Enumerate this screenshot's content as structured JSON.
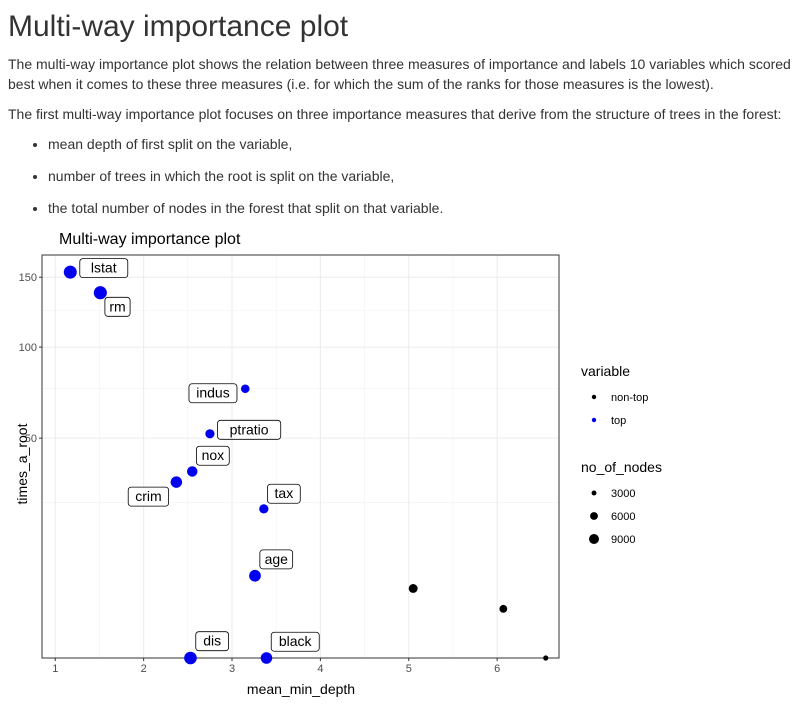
{
  "heading": "Multi-way importance plot",
  "intro": "The multi-way importance plot shows the relation between three measures of importance and labels 10 variables which scored best when it comes to these three measures (i.e. for which the sum of the ranks for those measures is the lowest).",
  "subintro": "The first multi-way importance plot focuses on three importance measures that derive from the structure of trees in the forest:",
  "bullets": [
    "mean depth of first split on the variable,",
    "number of trees in which the root is split on the variable,",
    "the total number of nodes in the forest that split on that variable."
  ],
  "chart_data": {
    "type": "scatter",
    "title": "Multi-way importance plot",
    "xlabel": "mean_min_depth",
    "ylabel": "times_a_root",
    "xlim": [
      0.85,
      6.7
    ],
    "ylim": [
      0,
      168
    ],
    "y_scale": "sqrt",
    "x_ticks": [
      1,
      2,
      3,
      4,
      5,
      6
    ],
    "y_ticks": [
      50,
      100,
      150
    ],
    "grid": true,
    "legend_placement": "right",
    "colors": {
      "top": "#0000ee",
      "non-top": "#000000"
    },
    "legend": {
      "color_title": "variable",
      "color_items": [
        {
          "key": "non-top",
          "label": "non-top",
          "color": "#000000"
        },
        {
          "key": "top",
          "label": "top",
          "color": "#0000ee"
        }
      ],
      "size_title": "no_of_nodes",
      "size_items": [
        {
          "label": "3000",
          "nodes": 3000
        },
        {
          "label": "6000",
          "nodes": 6000
        },
        {
          "label": "9000",
          "nodes": 9000
        }
      ]
    },
    "points": [
      {
        "label": "lstat",
        "x": 1.17,
        "y": 154,
        "nodes": 9000,
        "group": "top",
        "label_pos": "right"
      },
      {
        "label": "rm",
        "x": 1.51,
        "y": 138,
        "nodes": 9200,
        "group": "top",
        "label_pos": "below-right"
      },
      {
        "label": "indus",
        "x": 3.15,
        "y": 75,
        "nodes": 3600,
        "group": "top",
        "label_pos": "left"
      },
      {
        "label": "ptratio",
        "x": 2.75,
        "y": 52,
        "nodes": 4200,
        "group": "top",
        "label_pos": "right"
      },
      {
        "label": "nox",
        "x": 2.55,
        "y": 36,
        "nodes": 5600,
        "group": "top",
        "label_pos": "above-right"
      },
      {
        "label": "crim",
        "x": 2.37,
        "y": 32,
        "nodes": 6800,
        "group": "top",
        "label_pos": "below-left"
      },
      {
        "label": "tax",
        "x": 3.36,
        "y": 23,
        "nodes": 4300,
        "group": "top",
        "label_pos": "above-right"
      },
      {
        "label": "age",
        "x": 3.26,
        "y": 7,
        "nodes": 7200,
        "group": "top",
        "label_pos": "above-right"
      },
      {
        "label": "dis",
        "x": 2.53,
        "y": 0,
        "nodes": 8400,
        "group": "top",
        "label_pos": "above-right"
      },
      {
        "label": "black",
        "x": 3.39,
        "y": 0,
        "nodes": 6900,
        "group": "top",
        "label_pos": "above-right"
      },
      {
        "x": 5.05,
        "y": 5,
        "nodes": 3900,
        "group": "non-top"
      },
      {
        "x": 6.07,
        "y": 2.5,
        "nodes": 2900,
        "group": "non-top"
      },
      {
        "x": 6.55,
        "y": 0,
        "nodes": 1100,
        "group": "non-top"
      }
    ]
  }
}
